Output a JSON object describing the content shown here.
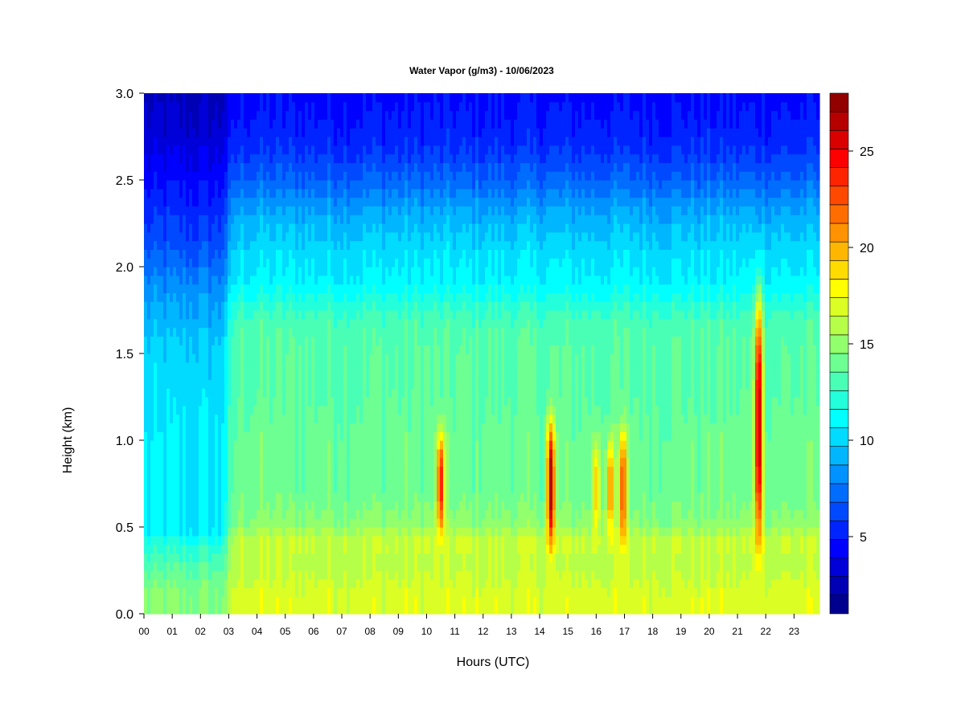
{
  "chart_data": {
    "type": "heatmap",
    "title": "Water Vapor (g/m3) - 10/06/2023",
    "xlabel": "Hours (UTC)",
    "ylabel": "Height (km)",
    "x_ticks": [
      "00",
      "01",
      "02",
      "03",
      "04",
      "05",
      "06",
      "07",
      "08",
      "09",
      "10",
      "11",
      "12",
      "13",
      "14",
      "15",
      "16",
      "17",
      "18",
      "19",
      "20",
      "21",
      "22",
      "23"
    ],
    "xlim": [
      0,
      23.9
    ],
    "y_ticks": [
      "0.0",
      "0.5",
      "1.0",
      "1.5",
      "2.0",
      "2.5",
      "3.0"
    ],
    "ylim": [
      0,
      3.0
    ],
    "colorbar": {
      "range": [
        1,
        28
      ],
      "levels": 27,
      "tick_values": [
        5,
        10,
        15,
        20,
        25
      ],
      "tick_labels": [
        "5",
        "10",
        "15",
        "20",
        "25"
      ],
      "colors": [
        "#00008f",
        "#0000b4",
        "#0000d9",
        "#0000fe",
        "#0024ff",
        "#0049ff",
        "#006dff",
        "#0092ff",
        "#00b6ff",
        "#00dbff",
        "#00ffff",
        "#24ffdb",
        "#49ffb6",
        "#6dff92",
        "#92ff6d",
        "#b6ff49",
        "#dbff24",
        "#ffff00",
        "#ffdb00",
        "#ffb600",
        "#ff9200",
        "#ff6d00",
        "#ff4900",
        "#ff2400",
        "#ff0000",
        "#db0000",
        "#b60000",
        "#920000"
      ]
    },
    "profile": {
      "heights_km": [
        0.0,
        0.1,
        0.2,
        0.3,
        0.4,
        0.45,
        0.5,
        0.7,
        1.0,
        1.3,
        1.5,
        1.7,
        1.9,
        2.1,
        2.3,
        2.5,
        2.7,
        3.0
      ],
      "early_morning_g_m3": [
        14.5,
        14.5,
        14.0,
        13.0,
        12.0,
        11.0,
        10.5,
        10.5,
        10.5,
        10.2,
        10.0,
        9.0,
        8.0,
        6.5,
        5.5,
        4.5,
        3.5,
        2.5
      ],
      "day_g_m3": [
        17.0,
        17.0,
        16.5,
        16.0,
        16.5,
        16.2,
        15.0,
        14.0,
        14.0,
        13.5,
        13.5,
        13.0,
        11.0,
        10.2,
        9.0,
        7.0,
        5.5,
        4.5
      ]
    },
    "moist_plumes": [
      {
        "hour": 10.5,
        "bottom_km": 0.45,
        "top_km": 1.05,
        "peak_g_m3": 24
      },
      {
        "hour": 14.4,
        "bottom_km": 0.4,
        "top_km": 1.1,
        "peak_g_m3": 27
      },
      {
        "hour": 16.0,
        "bottom_km": 0.45,
        "top_km": 1.0,
        "peak_g_m3": 19
      },
      {
        "hour": 16.5,
        "bottom_km": 0.45,
        "top_km": 1.0,
        "peak_g_m3": 21
      },
      {
        "hour": 16.95,
        "bottom_km": 0.4,
        "top_km": 1.05,
        "peak_g_m3": 23
      },
      {
        "hour": 21.75,
        "bottom_km": 0.4,
        "top_km": 1.8,
        "peak_g_m3": 27
      }
    ]
  }
}
